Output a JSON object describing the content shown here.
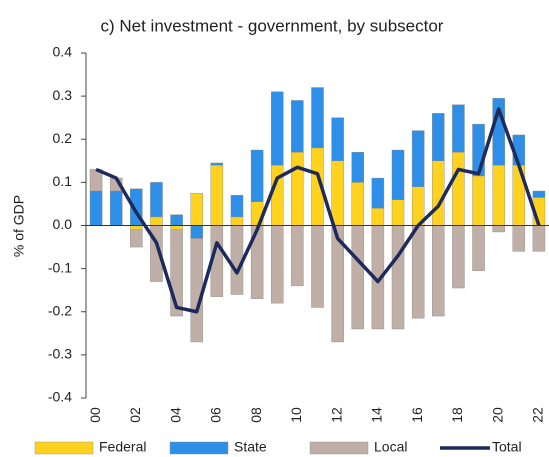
{
  "chart_data": {
    "type": "bar",
    "title": "c) Net investment - government, by subsector",
    "y_label": "% of GDP",
    "categories": [
      "00",
      null,
      "02",
      null,
      "04",
      null,
      "06",
      null,
      "08",
      null,
      "10",
      null,
      "12",
      null,
      "14",
      null,
      "16",
      null,
      "18",
      null,
      "20",
      null,
      "22"
    ],
    "series": [
      {
        "name": "Federal",
        "color": "#ffd21f",
        "values": [
          0.0,
          0.0,
          -0.01,
          0.02,
          -0.01,
          0.075,
          0.14,
          0.02,
          0.055,
          0.14,
          0.17,
          0.18,
          0.15,
          0.1,
          0.04,
          0.06,
          0.09,
          0.15,
          0.17,
          0.115,
          0.14,
          0.14,
          0.065
        ]
      },
      {
        "name": "State",
        "color": "#2e8fe8",
        "values": [
          0.08,
          0.08,
          0.085,
          0.08,
          0.025,
          -0.03,
          0.005,
          0.05,
          0.12,
          0.17,
          0.12,
          0.14,
          0.1,
          0.07,
          0.07,
          0.115,
          0.13,
          0.11,
          0.11,
          0.12,
          0.155,
          0.07,
          0.015
        ]
      },
      {
        "name": "Local",
        "color": "#bfafa6",
        "values": [
          0.05,
          0.03,
          -0.04,
          -0.13,
          -0.2,
          -0.24,
          -0.165,
          -0.16,
          -0.17,
          -0.18,
          -0.14,
          -0.19,
          -0.27,
          -0.24,
          -0.24,
          -0.24,
          -0.215,
          -0.21,
          -0.145,
          -0.105,
          -0.015,
          -0.06,
          -0.06
        ]
      },
      {
        "name": "Total",
        "color": "#1f2a5c",
        "type": "line",
        "values": [
          0.13,
          0.11,
          0.03,
          -0.04,
          -0.19,
          -0.2,
          -0.04,
          -0.11,
          -0.01,
          0.11,
          0.135,
          0.12,
          -0.03,
          -0.08,
          -0.13,
          -0.07,
          0.0,
          0.045,
          0.13,
          0.12,
          0.27,
          0.14,
          0.0
        ]
      }
    ],
    "ylim": [
      -0.4,
      0.4
    ],
    "yticks": [
      -0.4,
      -0.3,
      -0.2,
      -0.1,
      {
        "value": 0,
        "label": "0.0"
      },
      0.1,
      0.2,
      0.3,
      0.4
    ],
    "legend": "bottom"
  }
}
